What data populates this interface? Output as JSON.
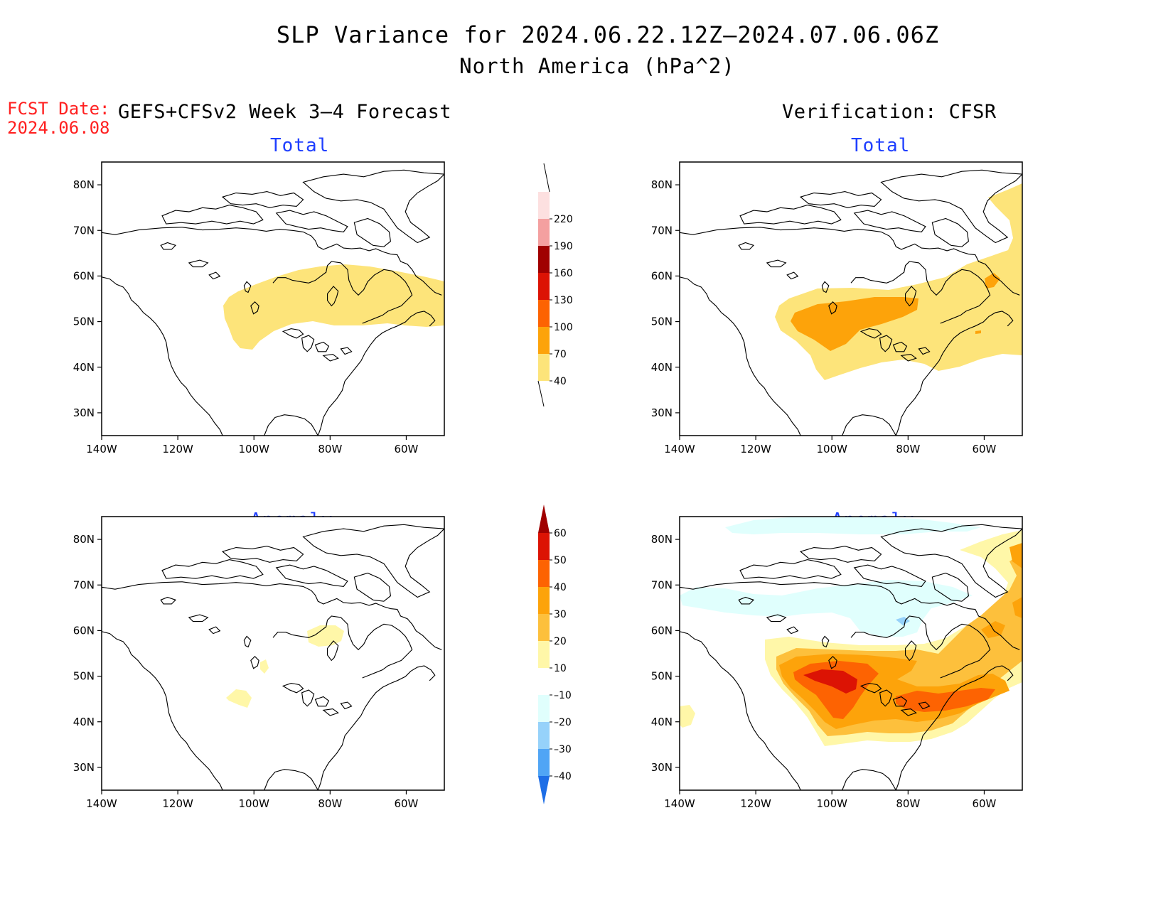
{
  "header": {
    "title": "SLP Variance for 2024.06.22.12Z–2024.07.06.06Z",
    "subtitle": "North America (hPa^2)",
    "fcst_date_label": "FCST Date:",
    "fcst_date_value": "2024.06.08"
  },
  "columns": {
    "left": "GEFS+CFSv2 Week 3–4 Forecast",
    "right": "Verification: CFSR"
  },
  "panels": {
    "top_left": "Total",
    "top_right": "Total",
    "bottom_left": "Anomaly",
    "bottom_right": "Anomaly"
  },
  "axes": {
    "lat_labels": [
      "80N",
      "70N",
      "60N",
      "50N",
      "40N",
      "30N"
    ],
    "lon_labels": [
      "140W",
      "120W",
      "100W",
      "80W",
      "60W"
    ],
    "lat_values": [
      80,
      70,
      60,
      50,
      40,
      30
    ],
    "lon_values": [
      -140,
      -120,
      -100,
      -80,
      -60
    ],
    "lat_range": [
      25,
      85
    ],
    "lon_range": [
      -140,
      -50
    ]
  },
  "colorbars": {
    "total": {
      "levels": [
        "40",
        "70",
        "100",
        "130",
        "160",
        "190",
        "220"
      ],
      "colors": [
        "#fde47a",
        "#fda30a",
        "#fd6302",
        "#dc1304",
        "#a00000",
        "#f4a0a0",
        "#fde0e0"
      ]
    },
    "anomaly": {
      "levels": [
        "60",
        "50",
        "40",
        "30",
        "20",
        "10",
        "–10",
        "–20",
        "–30",
        "–40"
      ],
      "colors_top_to_bottom": [
        "#a00000",
        "#dc1304",
        "#fd6302",
        "#fda30a",
        "#fdc03c",
        "#fff7a8",
        "#ffffff",
        "#e0fffd",
        "#96d2fa",
        "#50a5f5",
        "#1e6ee6"
      ]
    }
  },
  "colors": {
    "title_blue": "#1f3fff",
    "fcst_red": "#ff2020"
  }
}
